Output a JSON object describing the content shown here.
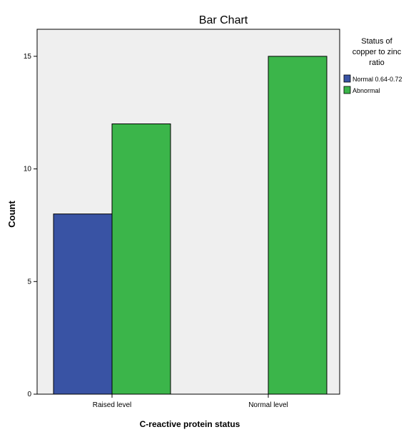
{
  "chart_data": {
    "type": "bar",
    "title": "Bar Chart",
    "xlabel": "C-reactive protein status",
    "ylabel": "Count",
    "categories": [
      "Raised level",
      "Normal level"
    ],
    "series": [
      {
        "name": "Normal 0.64-0.72",
        "values": [
          8,
          0
        ],
        "color": "#3953a4"
      },
      {
        "name": "Abnormal",
        "values": [
          12,
          15
        ],
        "color": "#3bb54a"
      }
    ],
    "ylim": [
      0,
      16.2
    ],
    "yticks": [
      0,
      5,
      10,
      15
    ],
    "grid": false,
    "plot_background": "#efefef",
    "legend": {
      "title_lines": [
        "Status of",
        "copper to zinc",
        "ratio"
      ],
      "placement": "right"
    }
  }
}
